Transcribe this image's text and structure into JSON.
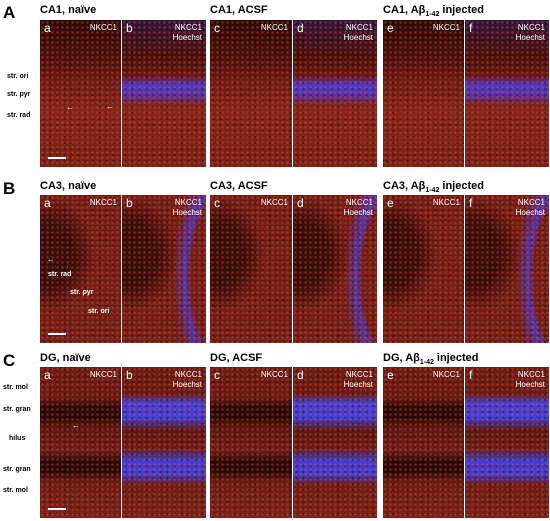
{
  "rows": [
    {
      "letter": "A",
      "groups": [
        {
          "title": "CA1, naïve"
        },
        {
          "title": "CA1, ACSF"
        },
        {
          "title": "CA1, Aβ",
          "title_sub": "1-42",
          "title_end": "injected"
        }
      ],
      "panels": [
        "a",
        "b",
        "c",
        "d",
        "e",
        "f"
      ],
      "layers": [
        "str. ori",
        "str. pyr",
        "str. rad"
      ]
    },
    {
      "letter": "B",
      "groups": [
        {
          "title": "CA3, naïve"
        },
        {
          "title": "CA3, ACSF"
        },
        {
          "title": "CA3, Aβ",
          "title_sub": "1-42",
          "title_end": "injected"
        }
      ],
      "panels": [
        "a",
        "b",
        "c",
        "d",
        "e",
        "f"
      ],
      "layers": [
        "str. rad",
        "str. pyr",
        "str. ori"
      ]
    },
    {
      "letter": "C",
      "groups": [
        {
          "title": "DG, naïve"
        },
        {
          "title": "DG, ACSF"
        },
        {
          "title": "DG, Aβ",
          "title_sub": "1-42",
          "title_end": "injected"
        }
      ],
      "panels": [
        "a",
        "b",
        "c",
        "d",
        "e",
        "f"
      ],
      "layers": [
        "str. mol",
        "str. gran",
        "hilus",
        "str. gran",
        "str. mol"
      ]
    }
  ],
  "stains": {
    "single": "NKCC1",
    "merge_top": "NKCC1",
    "merge_bottom": "Hoechst"
  }
}
